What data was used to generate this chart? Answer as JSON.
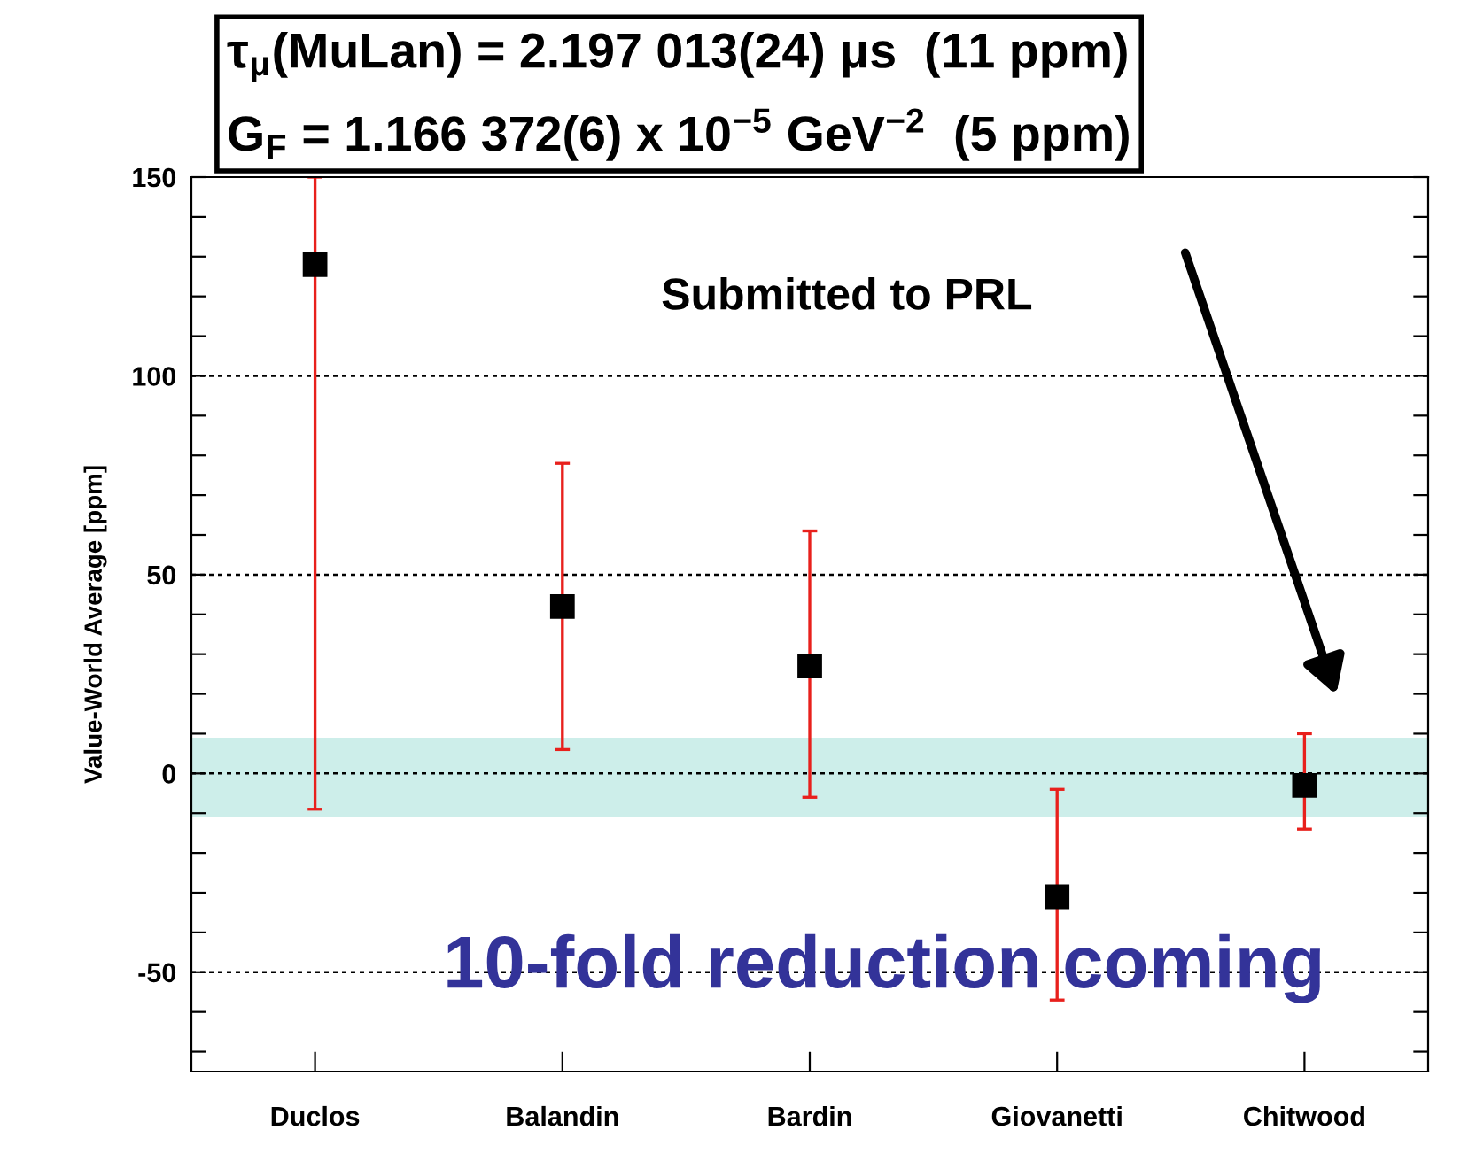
{
  "chart_data": {
    "type": "scatter",
    "ylabel": "Value-World Average [ppm]",
    "categories": [
      "Duclos",
      "Balandin",
      "Bardin",
      "Giovanetti",
      "Chitwood"
    ],
    "series": [
      {
        "color": "#000000",
        "values": [
          128,
          42,
          27,
          -31,
          -3
        ],
        "errors": [
          [
            -9,
            150
          ],
          [
            6,
            78
          ],
          [
            -6,
            61
          ],
          [
            -57,
            -4
          ],
          [
            -14,
            10
          ]
        ]
      }
    ],
    "ylim": [
      -75,
      150
    ],
    "yticks": [
      {
        "value": -70,
        "label": null
      },
      {
        "value": -60,
        "label": null
      },
      -50,
      {
        "value": -40,
        "label": null
      },
      {
        "value": -30,
        "label": null
      },
      {
        "value": -20,
        "label": null
      },
      {
        "value": -10,
        "label": null
      },
      0,
      {
        "value": 10,
        "label": null
      },
      {
        "value": 20,
        "label": null
      },
      {
        "value": 30,
        "label": null
      },
      {
        "value": 40,
        "label": null
      },
      50,
      {
        "value": 60,
        "label": null
      },
      {
        "value": 70,
        "label": null
      },
      {
        "value": 80,
        "label": null
      },
      {
        "value": 90,
        "label": null
      },
      100,
      {
        "value": 110,
        "label": null
      },
      {
        "value": 120,
        "label": null
      },
      {
        "value": 130,
        "label": null
      },
      {
        "value": 140,
        "label": null
      },
      150
    ],
    "grid": "y",
    "marker": "square",
    "bands": [
      {
        "axis": "y",
        "from": -11,
        "to": 9,
        "color": "#cdeeea"
      }
    ],
    "annotations": [
      "τ$_{μ}$(MuLan) = 2.197 013(24) μs  (11 ppm)",
      "G$_{F}$ = 1.166 372(6) x 10$^{−5}$ GeV$^{−2}$  (5 ppm)",
      "Submitted to PRL",
      "10-fold reduction coming"
    ]
  }
}
